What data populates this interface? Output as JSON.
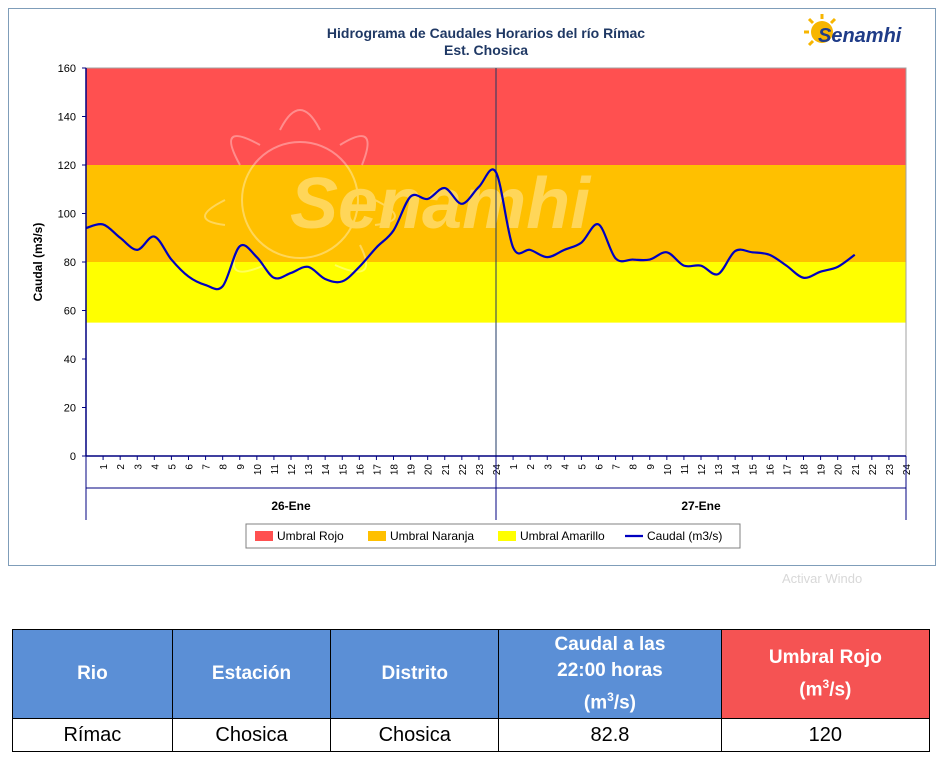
{
  "chart_data": {
    "type": "line",
    "title": "Hidrograma de Caudales Horarios del río Rímac",
    "subtitle": "Est. Chosica",
    "logo_text": "Senamhi",
    "watermark": "Senamhi",
    "ylabel": "Caudal  (m3/s)",
    "ylim": [
      0,
      160
    ],
    "yticks": [
      "0",
      "20",
      "40",
      "60",
      "80",
      "100",
      "120",
      "140",
      "160"
    ],
    "hour_labels": [
      "1",
      "2",
      "3",
      "4",
      "5",
      "6",
      "7",
      "8",
      "9",
      "10",
      "11",
      "12",
      "13",
      "14",
      "15",
      "16",
      "17",
      "18",
      "19",
      "20",
      "21",
      "22",
      "23",
      "24"
    ],
    "day_groups": [
      "26-Ene",
      "27-Ene"
    ],
    "bands": [
      {
        "name": "Umbral Amarillo",
        "from": 55,
        "to": 80,
        "color": "#ffff00"
      },
      {
        "name": "Umbral Naranja",
        "from": 80,
        "to": 120,
        "color": "#ffc000"
      },
      {
        "name": "Umbral Rojo",
        "from": 120,
        "to": 160,
        "color": "#ff5050"
      }
    ],
    "legend": [
      "Umbral Rojo",
      "Umbral Naranja",
      "Umbral Amarillo",
      "Caudal (m3/s)"
    ],
    "legend_colors": [
      "#ff5050",
      "#ffc000",
      "#ffff00",
      "#0000c0"
    ],
    "legend_position": "bottom",
    "series": [
      {
        "name": "Caudal (m3/s)",
        "color": "#0000c0",
        "values": [
          94,
          95.5,
          90,
          85,
          90.5,
          81,
          74,
          70.5,
          70,
          86.5,
          82,
          73.5,
          75.5,
          78,
          73,
          72,
          78,
          86,
          93,
          107,
          106,
          110.5,
          104,
          111,
          117,
          86,
          85,
          82,
          85,
          88,
          95.5,
          81.5,
          81,
          81,
          84,
          78.5,
          78.5,
          75,
          84.5,
          84,
          83,
          78.5,
          73.5,
          76,
          78,
          83
        ]
      }
    ]
  },
  "table": {
    "headers": {
      "rio": "Rio",
      "estacion": "Estación",
      "distrito": "Distrito",
      "caudal_line1": "Caudal a las",
      "caudal_line2": "22:00 horas",
      "caudal_unit": "(m",
      "caudal_unit_sup": "3",
      "caudal_unit_end": "/s)",
      "umbral_line1": "Umbral Rojo",
      "umbral_unit": "(m",
      "umbral_unit_sup": "3",
      "umbral_unit_end": "/s)"
    },
    "row": {
      "rio": "Rímac",
      "estacion": "Chosica",
      "distrito": "Chosica",
      "caudal": "82.8",
      "umbral": "120"
    }
  },
  "watermark_corner": "Activar Windo"
}
